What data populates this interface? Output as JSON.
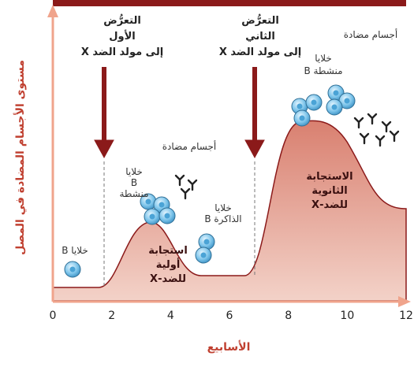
{
  "axes": {
    "y_label": "مستوى الأجسام المضادة في المصل",
    "x_label": "الأسابيع",
    "x_ticks": [
      0,
      2,
      4,
      6,
      8,
      10,
      12
    ]
  },
  "exposures": [
    {
      "lines": [
        "التعرُّض",
        "الأول",
        "إلى مولد الضد X"
      ]
    },
    {
      "lines": [
        "التعرُّض",
        "الثاني",
        "إلى مولد الضد X"
      ]
    }
  ],
  "labels": {
    "b_cells": "خلايا B",
    "activated_1": [
      "خلايا",
      "B",
      "منشطة"
    ],
    "antibodies_1": "أجسام مضادة",
    "memory": [
      "خلايا",
      "B الذاكرة"
    ],
    "primary": [
      "استجابة",
      "أولية",
      "للضد-X"
    ],
    "secondary": [
      "الاستجابة",
      "الثانوية",
      "للضد-X"
    ],
    "activated_2": [
      "خلايا",
      "B منشطة"
    ],
    "antibodies_2": "أجسام مضادة"
  }
}
